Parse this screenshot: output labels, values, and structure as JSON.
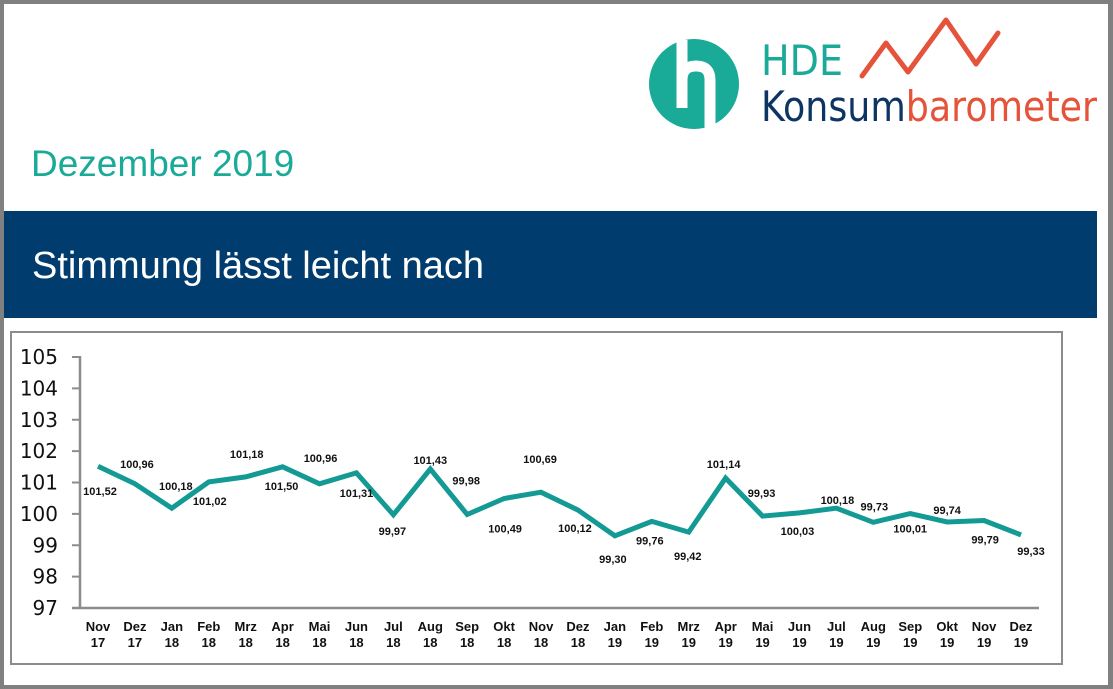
{
  "logo": {
    "brand": "HDE",
    "word_part1": "Konsum",
    "word_part2": "barometer",
    "colors": {
      "teal": "#1aaa98",
      "navy": "#0e3463",
      "orange": "#e5533b"
    }
  },
  "header": {
    "subtitle": "Dezember 2019",
    "title": "Stimmung lässt leicht nach"
  },
  "colors": {
    "banner": "#003c6e",
    "line": "#139a94",
    "axis": "#8c8c8c"
  },
  "chart_data": {
    "type": "line",
    "title": "Stimmung lässt leicht nach",
    "xlabel": "",
    "ylabel": "",
    "ylim": [
      97,
      105
    ],
    "yticks": [
      97,
      98,
      99,
      100,
      101,
      102,
      103,
      104,
      105
    ],
    "ytick_labels": [
      "97",
      "98",
      "99",
      "100",
      "101",
      "102",
      "103",
      "104",
      "105"
    ],
    "grid": false,
    "legend": "none",
    "categories": [
      [
        "Nov",
        "17"
      ],
      [
        "Dez",
        "17"
      ],
      [
        "Jan",
        "18"
      ],
      [
        "Feb",
        "18"
      ],
      [
        "Mrz",
        "18"
      ],
      [
        "Apr",
        "18"
      ],
      [
        "Mai",
        "18"
      ],
      [
        "Jun",
        "18"
      ],
      [
        "Jul",
        "18"
      ],
      [
        "Aug",
        "18"
      ],
      [
        "Sep",
        "18"
      ],
      [
        "Okt",
        "18"
      ],
      [
        "Nov",
        "18"
      ],
      [
        "Dez",
        "18"
      ],
      [
        "Jan",
        "19"
      ],
      [
        "Feb",
        "19"
      ],
      [
        "Mrz",
        "19"
      ],
      [
        "Apr",
        "19"
      ],
      [
        "Mai",
        "19"
      ],
      [
        "Jun",
        "19"
      ],
      [
        "Jul",
        "19"
      ],
      [
        "Aug",
        "19"
      ],
      [
        "Sep",
        "19"
      ],
      [
        "Okt",
        "19"
      ],
      [
        "Nov",
        "19"
      ],
      [
        "Dez",
        "19"
      ]
    ],
    "series": [
      {
        "name": "HDE Konsumbarometer",
        "values": [
          101.52,
          100.96,
          100.18,
          101.02,
          101.18,
          101.5,
          100.96,
          101.31,
          99.97,
          101.43,
          99.98,
          100.49,
          100.69,
          100.12,
          99.3,
          99.76,
          99.42,
          101.14,
          99.93,
          100.03,
          100.18,
          99.73,
          100.01,
          99.74,
          99.79,
          99.33
        ],
        "data_labels": [
          "101,52",
          "100,96",
          "100,18",
          "101,02",
          "101,18",
          "101,50",
          "100,96",
          "101,31",
          "99,97",
          "101,43",
          "99,98",
          "100,49",
          "100,69",
          "100,12",
          "99,30",
          "99,76",
          "99,42",
          "101,14",
          "99,93",
          "100,03",
          "100,18",
          "99,73",
          "100,01",
          "99,74",
          "99,79",
          "99,33"
        ]
      }
    ]
  }
}
